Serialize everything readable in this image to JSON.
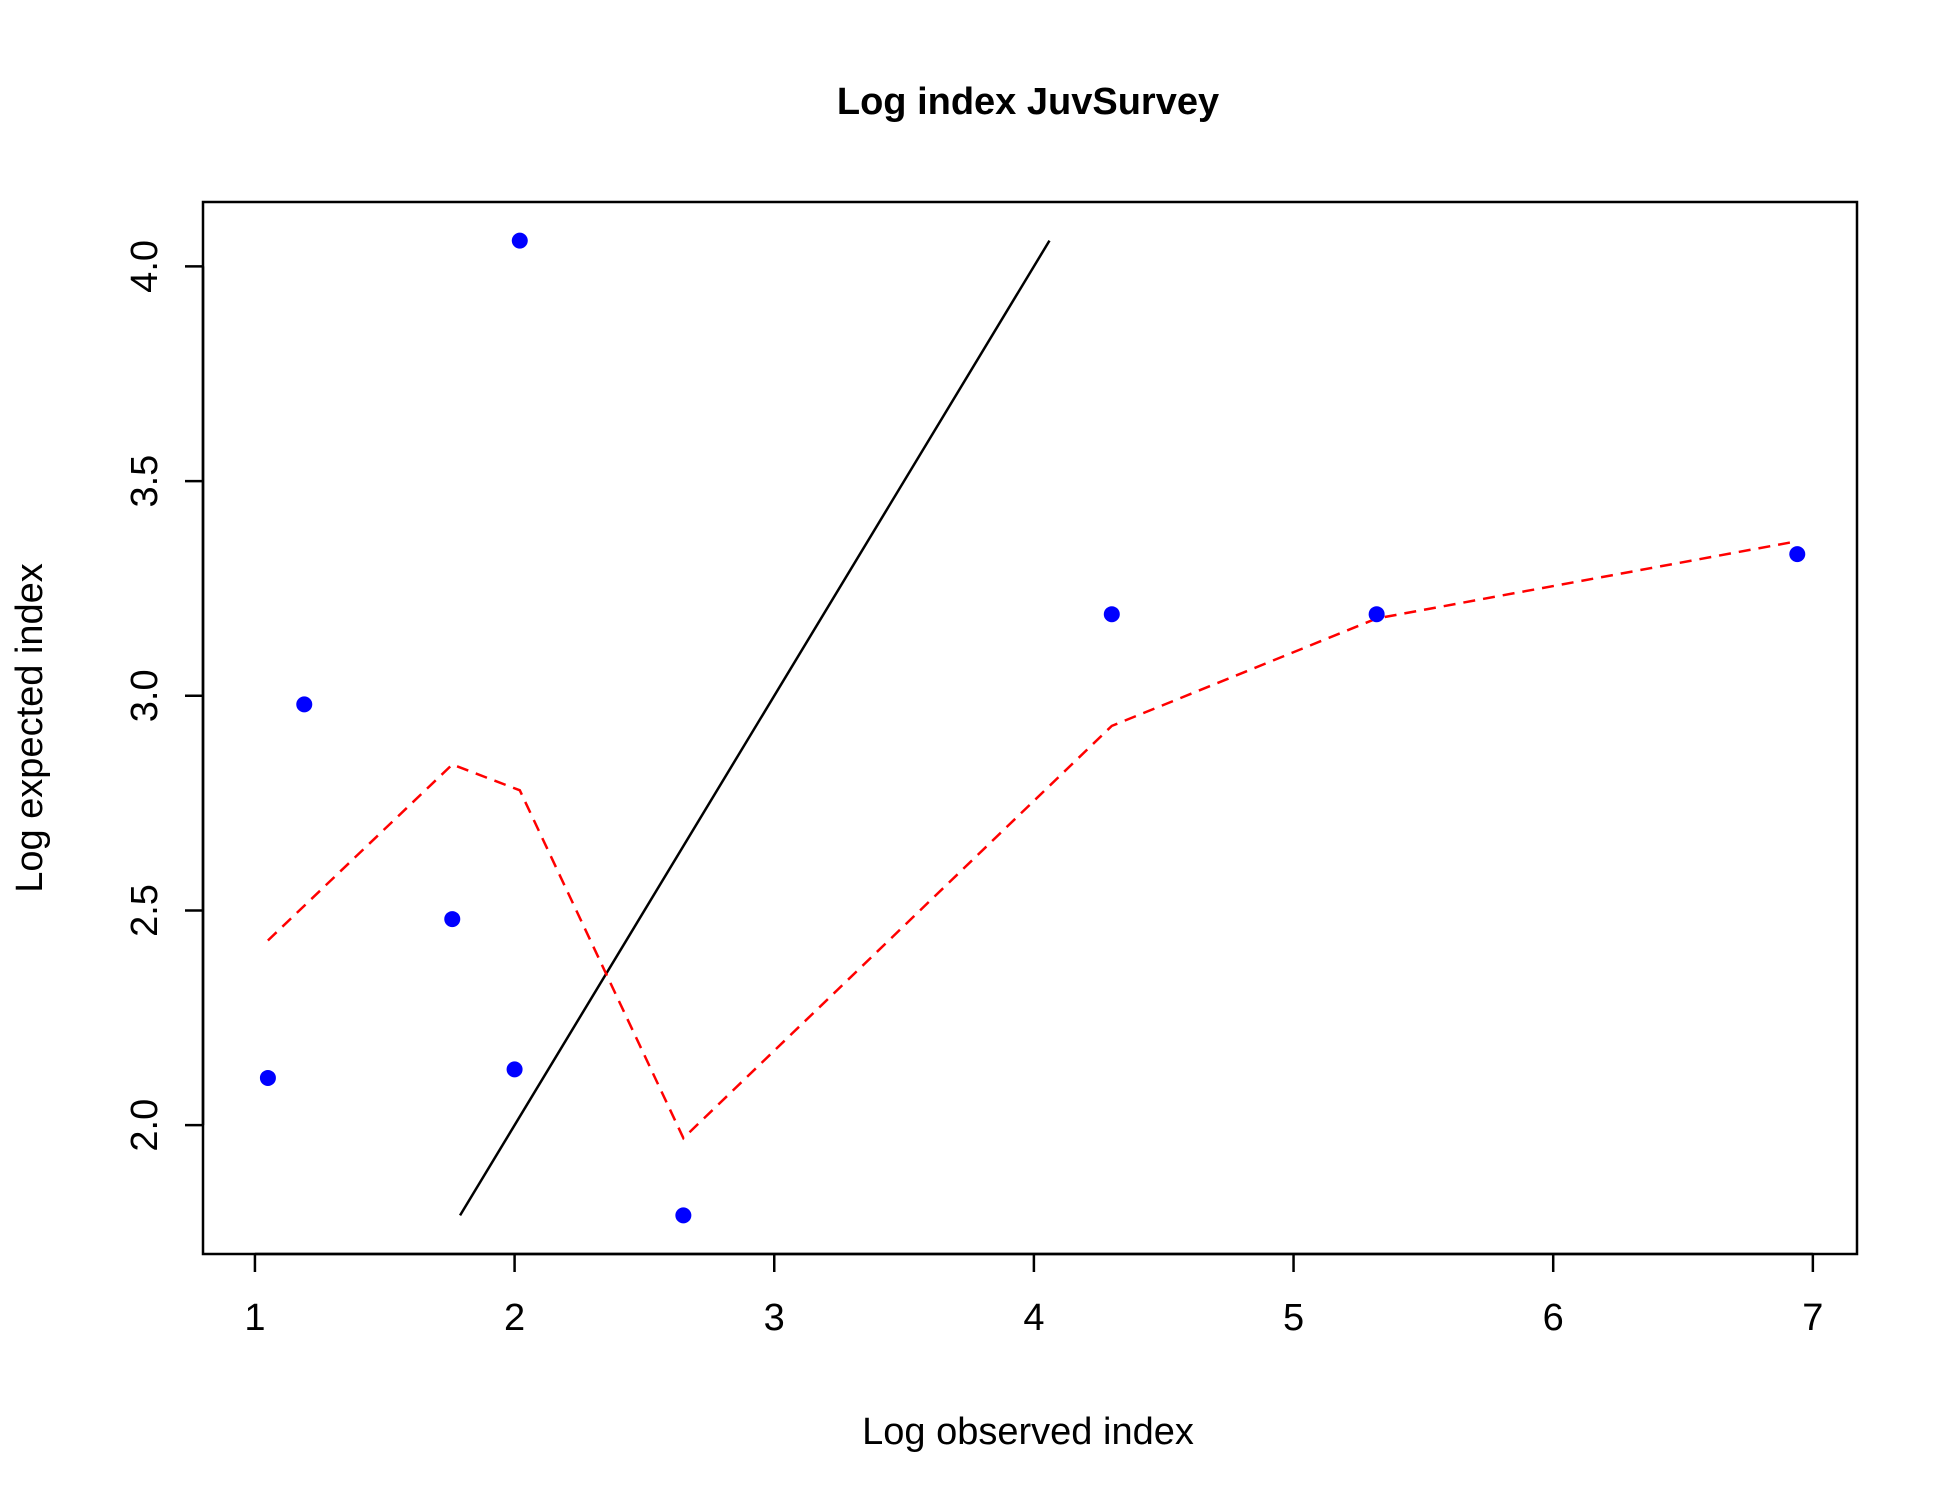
{
  "chart_data": {
    "type": "scatter",
    "title": "Log index JuvSurvey",
    "xlabel": "Log observed index",
    "ylabel": "Log expected index",
    "xlim": [
      0.8,
      7.17
    ],
    "ylim": [
      1.7,
      4.15
    ],
    "xticks": [
      1,
      2,
      3,
      4,
      5,
      6,
      7
    ],
    "xtick_labels": [
      "1",
      "2",
      "3",
      "4",
      "5",
      "6",
      "7"
    ],
    "yticks": [
      2.0,
      2.5,
      3.0,
      3.5,
      4.0
    ],
    "ytick_labels": [
      "2.0",
      "2.5",
      "3.0",
      "3.5",
      "4.0"
    ],
    "grid": false,
    "colors": {
      "points": "#0000ff",
      "identity_line": "#000000",
      "smooth_line": "#ff0000"
    },
    "points": [
      {
        "x": 1.05,
        "y": 2.11
      },
      {
        "x": 1.19,
        "y": 2.98
      },
      {
        "x": 1.76,
        "y": 2.48
      },
      {
        "x": 2.0,
        "y": 2.13
      },
      {
        "x": 2.02,
        "y": 4.06
      },
      {
        "x": 2.65,
        "y": 1.79
      },
      {
        "x": 4.3,
        "y": 3.19
      },
      {
        "x": 5.32,
        "y": 3.19
      },
      {
        "x": 6.94,
        "y": 3.33
      }
    ],
    "identity_line": [
      {
        "x": 1.79,
        "y": 1.79
      },
      {
        "x": 4.06,
        "y": 4.06
      }
    ],
    "smooth_line": [
      {
        "x": 1.05,
        "y": 2.43
      },
      {
        "x": 1.76,
        "y": 2.84
      },
      {
        "x": 2.02,
        "y": 2.78
      },
      {
        "x": 2.65,
        "y": 1.97
      },
      {
        "x": 4.3,
        "y": 2.93
      },
      {
        "x": 5.32,
        "y": 3.18
      },
      {
        "x": 6.94,
        "y": 3.36
      }
    ]
  }
}
